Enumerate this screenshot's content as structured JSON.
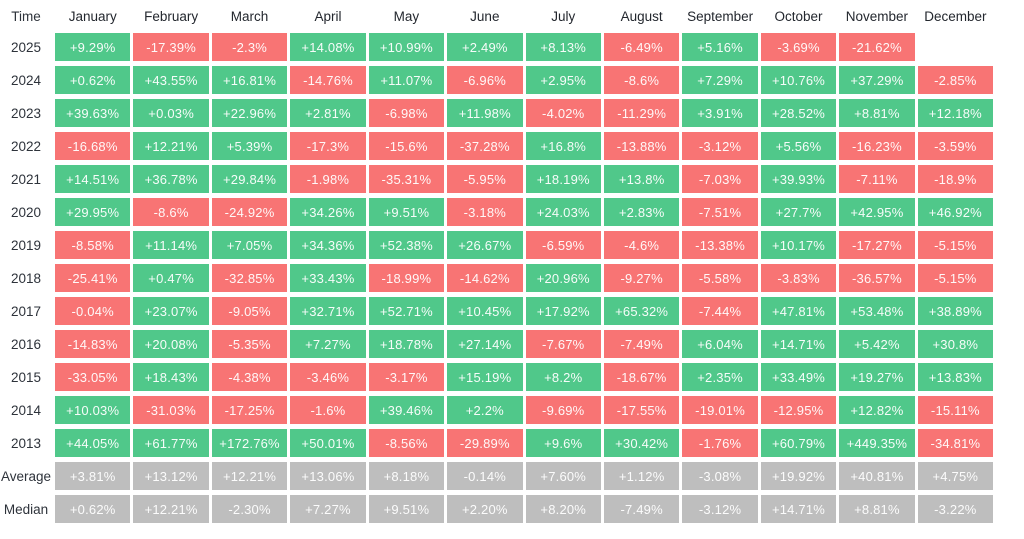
{
  "table": {
    "corner_label": "Time",
    "months": [
      "January",
      "February",
      "March",
      "April",
      "May",
      "June",
      "July",
      "August",
      "September",
      "October",
      "November",
      "December"
    ],
    "rows": [
      {
        "label": "2025",
        "type": "year",
        "values": [
          "+9.29%",
          "-17.39%",
          "-2.3%",
          "+14.08%",
          "+10.99%",
          "+2.49%",
          "+8.13%",
          "-6.49%",
          "+5.16%",
          "-3.69%",
          "-21.62%",
          null
        ]
      },
      {
        "label": "2024",
        "type": "year",
        "values": [
          "+0.62%",
          "+43.55%",
          "+16.81%",
          "-14.76%",
          "+11.07%",
          "-6.96%",
          "+2.95%",
          "-8.6%",
          "+7.29%",
          "+10.76%",
          "+37.29%",
          "-2.85%"
        ]
      },
      {
        "label": "2023",
        "type": "year",
        "values": [
          "+39.63%",
          "+0.03%",
          "+22.96%",
          "+2.81%",
          "-6.98%",
          "+11.98%",
          "-4.02%",
          "-11.29%",
          "+3.91%",
          "+28.52%",
          "+8.81%",
          "+12.18%"
        ]
      },
      {
        "label": "2022",
        "type": "year",
        "values": [
          "-16.68%",
          "+12.21%",
          "+5.39%",
          "-17.3%",
          "-15.6%",
          "-37.28%",
          "+16.8%",
          "-13.88%",
          "-3.12%",
          "+5.56%",
          "-16.23%",
          "-3.59%"
        ]
      },
      {
        "label": "2021",
        "type": "year",
        "values": [
          "+14.51%",
          "+36.78%",
          "+29.84%",
          "-1.98%",
          "-35.31%",
          "-5.95%",
          "+18.19%",
          "+13.8%",
          "-7.03%",
          "+39.93%",
          "-7.11%",
          "-18.9%"
        ]
      },
      {
        "label": "2020",
        "type": "year",
        "values": [
          "+29.95%",
          "-8.6%",
          "-24.92%",
          "+34.26%",
          "+9.51%",
          "-3.18%",
          "+24.03%",
          "+2.83%",
          "-7.51%",
          "+27.7%",
          "+42.95%",
          "+46.92%"
        ]
      },
      {
        "label": "2019",
        "type": "year",
        "values": [
          "-8.58%",
          "+11.14%",
          "+7.05%",
          "+34.36%",
          "+52.38%",
          "+26.67%",
          "-6.59%",
          "-4.6%",
          "-13.38%",
          "+10.17%",
          "-17.27%",
          "-5.15%"
        ]
      },
      {
        "label": "2018",
        "type": "year",
        "values": [
          "-25.41%",
          "+0.47%",
          "-32.85%",
          "+33.43%",
          "-18.99%",
          "-14.62%",
          "+20.96%",
          "-9.27%",
          "-5.58%",
          "-3.83%",
          "-36.57%",
          "-5.15%"
        ]
      },
      {
        "label": "2017",
        "type": "year",
        "values": [
          "-0.04%",
          "+23.07%",
          "-9.05%",
          "+32.71%",
          "+52.71%",
          "+10.45%",
          "+17.92%",
          "+65.32%",
          "-7.44%",
          "+47.81%",
          "+53.48%",
          "+38.89%"
        ]
      },
      {
        "label": "2016",
        "type": "year",
        "values": [
          "-14.83%",
          "+20.08%",
          "-5.35%",
          "+7.27%",
          "+18.78%",
          "+27.14%",
          "-7.67%",
          "-7.49%",
          "+6.04%",
          "+14.71%",
          "+5.42%",
          "+30.8%"
        ]
      },
      {
        "label": "2015",
        "type": "year",
        "values": [
          "-33.05%",
          "+18.43%",
          "-4.38%",
          "-3.46%",
          "-3.17%",
          "+15.19%",
          "+8.2%",
          "-18.67%",
          "+2.35%",
          "+33.49%",
          "+19.27%",
          "+13.83%"
        ]
      },
      {
        "label": "2014",
        "type": "year",
        "values": [
          "+10.03%",
          "-31.03%",
          "-17.25%",
          "-1.6%",
          "+39.46%",
          "+2.2%",
          "-9.69%",
          "-17.55%",
          "-19.01%",
          "-12.95%",
          "+12.82%",
          "-15.11%"
        ]
      },
      {
        "label": "2013",
        "type": "year",
        "values": [
          "+44.05%",
          "+61.77%",
          "+172.76%",
          "+50.01%",
          "-8.56%",
          "-29.89%",
          "+9.6%",
          "+30.42%",
          "-1.76%",
          "+60.79%",
          "+449.35%",
          "-34.81%"
        ]
      },
      {
        "label": "Average",
        "type": "summary",
        "values": [
          "+3.81%",
          "+13.12%",
          "+12.21%",
          "+13.06%",
          "+8.18%",
          "-0.14%",
          "+7.60%",
          "+1.12%",
          "-3.08%",
          "+19.92%",
          "+40.81%",
          "+4.75%"
        ]
      },
      {
        "label": "Median",
        "type": "summary",
        "values": [
          "+0.62%",
          "+12.21%",
          "-2.30%",
          "+7.27%",
          "+9.51%",
          "+2.20%",
          "+8.20%",
          "-7.49%",
          "-3.12%",
          "+14.71%",
          "+8.81%",
          "-3.22%"
        ]
      }
    ]
  },
  "colors": {
    "positive": "#50c88a",
    "negative": "#f87474",
    "summary": "#bebebe",
    "cell_text": "#ffffff",
    "label_text": "#2e333b"
  },
  "chart_data": {
    "type": "heatmap",
    "title": "Monthly returns (%) by year",
    "x": [
      "January",
      "February",
      "March",
      "April",
      "May",
      "June",
      "July",
      "August",
      "September",
      "October",
      "November",
      "December"
    ],
    "y": [
      "2025",
      "2024",
      "2023",
      "2022",
      "2021",
      "2020",
      "2019",
      "2018",
      "2017",
      "2016",
      "2015",
      "2014",
      "2013",
      "Average",
      "Median"
    ],
    "values": [
      [
        9.29,
        -17.39,
        -2.3,
        14.08,
        10.99,
        2.49,
        8.13,
        -6.49,
        5.16,
        -3.69,
        -21.62,
        null
      ],
      [
        0.62,
        43.55,
        16.81,
        -14.76,
        11.07,
        -6.96,
        2.95,
        -8.6,
        7.29,
        10.76,
        37.29,
        -2.85
      ],
      [
        39.63,
        0.03,
        22.96,
        2.81,
        -6.98,
        11.98,
        -4.02,
        -11.29,
        3.91,
        28.52,
        8.81,
        12.18
      ],
      [
        -16.68,
        12.21,
        5.39,
        -17.3,
        -15.6,
        -37.28,
        16.8,
        -13.88,
        -3.12,
        5.56,
        -16.23,
        -3.59
      ],
      [
        14.51,
        36.78,
        29.84,
        -1.98,
        -35.31,
        -5.95,
        18.19,
        13.8,
        -7.03,
        39.93,
        -7.11,
        -18.9
      ],
      [
        29.95,
        -8.6,
        -24.92,
        34.26,
        9.51,
        -3.18,
        24.03,
        2.83,
        -7.51,
        27.7,
        42.95,
        46.92
      ],
      [
        -8.58,
        11.14,
        7.05,
        34.36,
        52.38,
        26.67,
        -6.59,
        -4.6,
        -13.38,
        10.17,
        -17.27,
        -5.15
      ],
      [
        -25.41,
        0.47,
        -32.85,
        33.43,
        -18.99,
        -14.62,
        20.96,
        -9.27,
        -5.58,
        -3.83,
        -36.57,
        -5.15
      ],
      [
        -0.04,
        23.07,
        -9.05,
        32.71,
        52.71,
        10.45,
        17.92,
        65.32,
        -7.44,
        47.81,
        53.48,
        38.89
      ],
      [
        -14.83,
        20.08,
        -5.35,
        7.27,
        18.78,
        27.14,
        -7.67,
        -7.49,
        6.04,
        14.71,
        5.42,
        30.8
      ],
      [
        -33.05,
        18.43,
        -4.38,
        -3.46,
        -3.17,
        15.19,
        8.2,
        -18.67,
        2.35,
        33.49,
        19.27,
        13.83
      ],
      [
        10.03,
        -31.03,
        -17.25,
        -1.6,
        39.46,
        2.2,
        -9.69,
        -17.55,
        -19.01,
        -12.95,
        12.82,
        -15.11
      ],
      [
        44.05,
        61.77,
        172.76,
        50.01,
        -8.56,
        -29.89,
        9.6,
        30.42,
        -1.76,
        60.79,
        449.35,
        -34.81
      ],
      [
        3.81,
        13.12,
        12.21,
        13.06,
        8.18,
        -0.14,
        7.6,
        1.12,
        -3.08,
        19.92,
        40.81,
        4.75
      ],
      [
        0.62,
        12.21,
        -2.3,
        7.27,
        9.51,
        2.2,
        8.2,
        -7.49,
        -3.12,
        14.71,
        8.81,
        -3.22
      ]
    ],
    "color_rule": "green = positive, red = negative, gray = Average/Median summary rows, blank = no data",
    "legend_position": "none",
    "grid": false
  }
}
